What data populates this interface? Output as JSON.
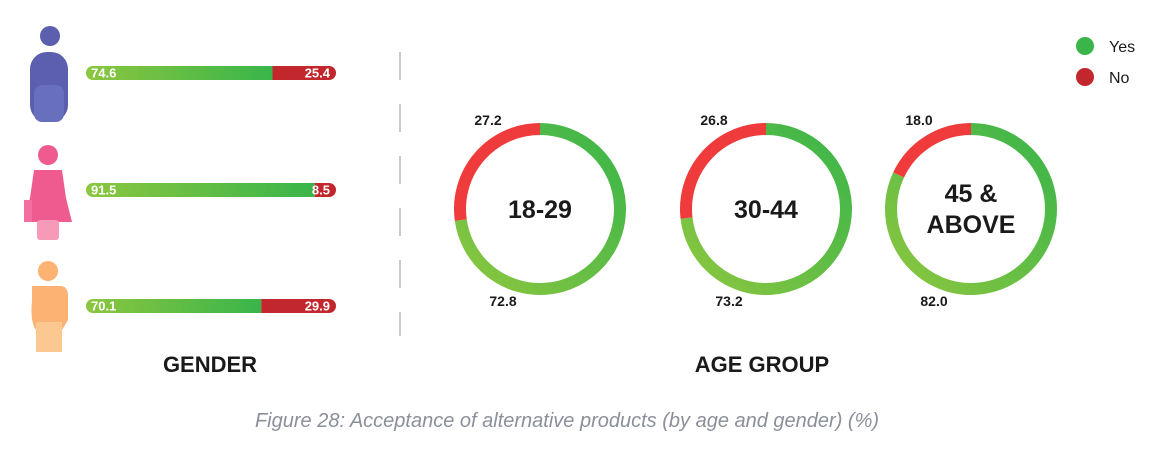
{
  "colors": {
    "yes_light": "#8cc63f",
    "yes_dark": "#39b54a",
    "no_bar": "#c1272d",
    "no_ring": "#ef3b3b",
    "divider": "#999999",
    "caption": "#8a8f99",
    "text": "#1a1a1a",
    "male_icon": "#5b5fad",
    "female_icon": "#ef5a8f",
    "other_icon": "#fbb273"
  },
  "legend": {
    "position": "top-right",
    "items": [
      {
        "label": "Yes",
        "color": "#39b54a"
      },
      {
        "label": "No",
        "color": "#c1272d"
      }
    ]
  },
  "chart_data": [
    {
      "type": "bar",
      "orientation": "horizontal-stacked",
      "title": "GENDER",
      "categories": [
        "male-icon",
        "female-icon",
        "person-icon"
      ],
      "series": [
        {
          "name": "Yes",
          "values": [
            74.6,
            91.5,
            70.1
          ]
        },
        {
          "name": "No",
          "values": [
            25.4,
            8.5,
            29.9
          ]
        }
      ],
      "labels_yes": [
        "74.6",
        "91.5",
        "70.1"
      ],
      "labels_no": [
        "25.4",
        "8.5",
        "29.9"
      ],
      "xlim": [
        0,
        100
      ]
    },
    {
      "type": "pie",
      "style": "donut",
      "title": "AGE GROUP",
      "groups": [
        {
          "label": "18-29",
          "yes": 72.8,
          "no": 27.2,
          "yes_label": "72.8",
          "no_label": "27.2"
        },
        {
          "label": "30-44",
          "yes": 73.2,
          "no": 26.8,
          "yes_label": "73.2",
          "no_label": "26.8"
        },
        {
          "label_line1": "45 &",
          "label_line2": "ABOVE",
          "yes": 82.0,
          "no": 18.0,
          "yes_label": "82.0",
          "no_label": "18.0"
        }
      ]
    }
  ],
  "caption": "Figure 28: Acceptance of alternative products (by age and gender) (%)"
}
